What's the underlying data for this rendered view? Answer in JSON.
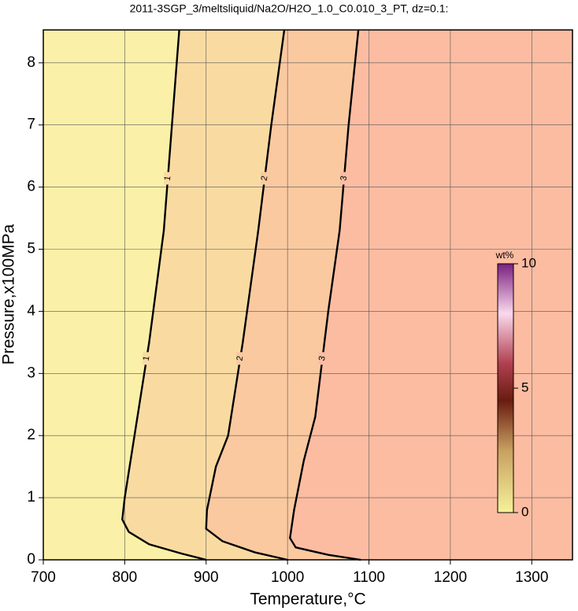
{
  "chart_data": {
    "type": "contour",
    "title": "2011-3SGP_3/meltsliquid/Na2O/H2O_1.0_C0.010_3_PT, dz=0.1:",
    "x_label": "Temperature,°C",
    "y_label": "Pressure,x100MPa",
    "xlim": [
      700,
      1350
    ],
    "xticks": [
      700,
      800,
      900,
      1000,
      1100,
      1200,
      1300
    ],
    "ylim": [
      0,
      8.53
    ],
    "yticks": [
      0,
      1,
      2,
      3,
      4,
      5,
      6,
      7,
      8
    ],
    "grid": true,
    "contours": [
      {
        "level": 1,
        "x": [
          900,
          870,
          830,
          805,
          797,
          800,
          812,
          830,
          848,
          858,
          867
        ],
        "y": [
          0,
          0.1,
          0.25,
          0.45,
          0.65,
          1,
          2,
          3.5,
          5.3,
          7,
          8.53
        ]
      },
      {
        "level": 2,
        "x": [
          1000,
          960,
          920,
          900,
          901,
          912,
          927,
          945,
          964,
          980,
          996
        ],
        "y": [
          0,
          0.12,
          0.3,
          0.5,
          0.8,
          1.5,
          2,
          3.5,
          5.3,
          7,
          8.53
        ]
      },
      {
        "level": 3,
        "x": [
          1090,
          1050,
          1010,
          1003,
          1008,
          1020,
          1034,
          1050,
          1064,
          1075,
          1087
        ],
        "y": [
          0,
          0.08,
          0.2,
          0.35,
          0.8,
          1.6,
          2.3,
          4,
          5.3,
          7,
          8.53
        ]
      }
    ],
    "region_colors": [
      "#fbf0a8",
      "#f9dba2",
      "#fac9a0",
      "#fbbca2"
    ],
    "colorbar": {
      "label": "wt%",
      "lim": [
        0,
        10
      ],
      "ticks": [
        0,
        5,
        10
      ]
    }
  }
}
